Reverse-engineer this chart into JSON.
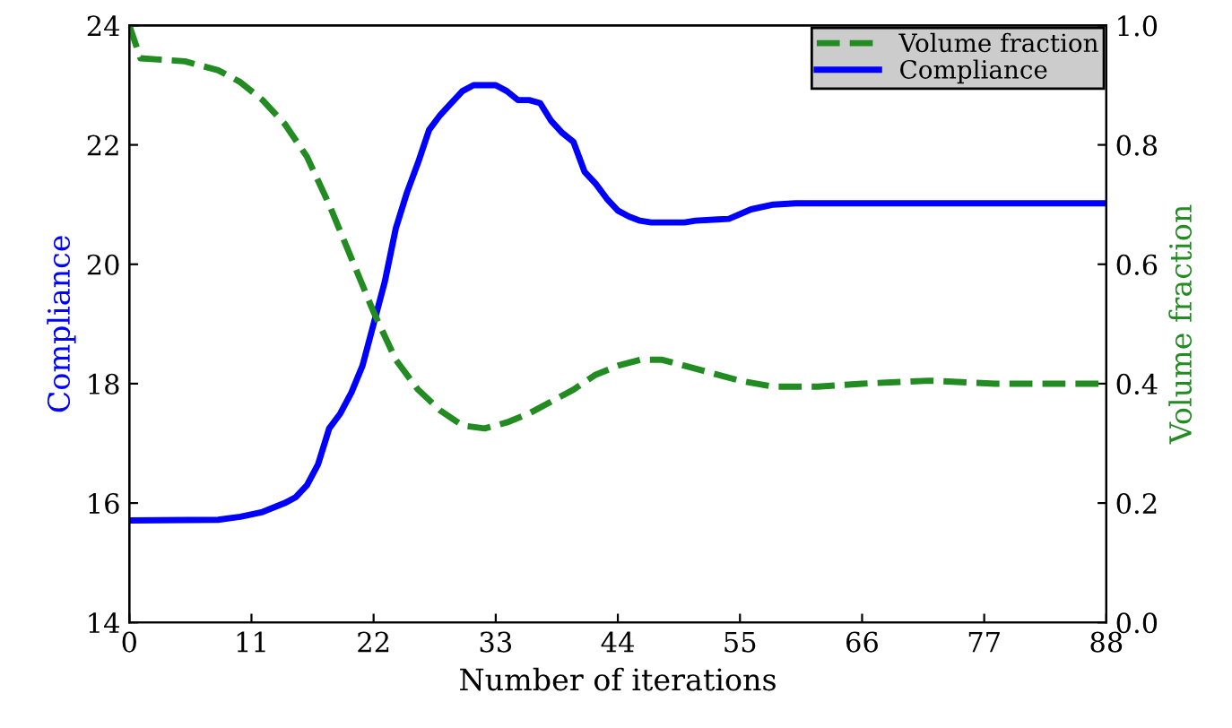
{
  "chart_data": {
    "type": "line",
    "xlabel": "Number of iterations",
    "ylabel": "Compliance",
    "y2label": "Volume fraction",
    "xlim": [
      0,
      88
    ],
    "xticks": [
      0,
      11,
      22,
      33,
      44,
      55,
      66,
      77,
      88
    ],
    "ylim": [
      14,
      24
    ],
    "yticks": [
      14,
      16,
      18,
      20,
      22,
      24
    ],
    "y2lim": [
      0,
      1
    ],
    "y2ticks": [
      {
        "value": 0,
        "label": "0.0"
      },
      0.2,
      0.4,
      0.6,
      0.8,
      {
        "value": 1,
        "label": "1.0"
      }
    ],
    "legend": "top right",
    "grid": false,
    "series": [
      {
        "name": "Volume fraction",
        "color": "#228b22",
        "axis": "y2",
        "line_style": "dashed",
        "x": [
          0,
          1,
          5,
          8,
          10,
          12,
          14,
          16,
          18,
          20,
          22,
          24,
          26,
          28,
          30,
          32,
          34,
          36,
          38,
          40,
          42,
          44,
          46,
          48,
          50,
          52,
          55,
          58,
          62,
          66,
          72,
          78,
          88
        ],
        "values": [
          1.0,
          0.945,
          0.94,
          0.925,
          0.905,
          0.875,
          0.835,
          0.78,
          0.7,
          0.61,
          0.52,
          0.44,
          0.39,
          0.355,
          0.33,
          0.325,
          0.335,
          0.35,
          0.37,
          0.39,
          0.415,
          0.43,
          0.44,
          0.44,
          0.43,
          0.42,
          0.405,
          0.395,
          0.395,
          0.4,
          0.405,
          0.4,
          0.4
        ]
      },
      {
        "name": "Compliance",
        "color": "#0000ff",
        "axis": "y",
        "line_style": "solid",
        "x": [
          0,
          8,
          10,
          12,
          14,
          15,
          16,
          17,
          18,
          19,
          20,
          21,
          22,
          23,
          24,
          25,
          26,
          27,
          28,
          29,
          30,
          31,
          32,
          33,
          34,
          35,
          36,
          37,
          38,
          39,
          40,
          41,
          42,
          43,
          44,
          45,
          46,
          47,
          50,
          51,
          53,
          54,
          56,
          58,
          60,
          88
        ],
        "values": [
          15.71,
          15.72,
          15.77,
          15.85,
          16.0,
          16.1,
          16.3,
          16.65,
          17.25,
          17.5,
          17.85,
          18.3,
          19.0,
          19.7,
          20.6,
          21.2,
          21.7,
          22.25,
          22.5,
          22.7,
          22.9,
          23.0,
          23.0,
          23.0,
          22.9,
          22.75,
          22.75,
          22.7,
          22.4,
          22.2,
          22.05,
          21.55,
          21.35,
          21.1,
          20.9,
          20.8,
          20.73,
          20.7,
          20.7,
          20.73,
          20.75,
          20.76,
          20.92,
          21.0,
          21.02,
          21.02
        ]
      }
    ]
  }
}
